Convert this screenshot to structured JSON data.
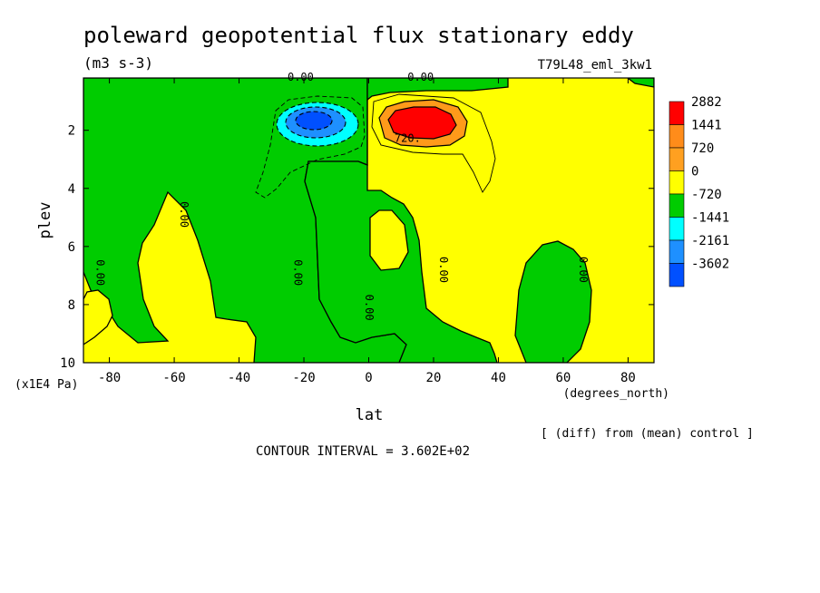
{
  "chart_data": {
    "type": "heatmap",
    "title": "poleward geopotential flux stationary eddy",
    "units": "(m3 s-3)",
    "run_label": "T79L48_eml_3kw1",
    "xlabel": "lat",
    "x_units": "(degrees_north)",
    "ylabel": "plev",
    "y_units": "(x1E4 Pa)",
    "xlim": [
      -88,
      88
    ],
    "ylim": [
      0.2,
      10
    ],
    "y_reversed": true,
    "x_ticks": [
      "-80",
      "-60",
      "-40",
      "-20",
      "0",
      "20",
      "40",
      "60",
      "80"
    ],
    "y_ticks": [
      "2",
      "4",
      "6",
      "8",
      "10"
    ],
    "x_tick_values": [
      -80,
      -60,
      -40,
      -20,
      0,
      20,
      40,
      60,
      80
    ],
    "y_tick_values": [
      2,
      4,
      6,
      8,
      10
    ],
    "contour_interval_text": "CONTOUR INTERVAL = 3.602E+02",
    "footnote": "[ (diff) from (mean) control ]",
    "contour_labels": [
      {
        "text": "0.00",
        "lat": -21,
        "plev": 0.3
      },
      {
        "text": "0.00",
        "lat": 16,
        "plev": 0.3
      },
      {
        "text": "720.",
        "lat": 12,
        "plev": 2.4
      },
      {
        "text": "0.00",
        "lat": -58,
        "plev": 4.9
      },
      {
        "text": "0.00",
        "lat": -84,
        "plev": 6.9
      },
      {
        "text": "0.00",
        "lat": -23,
        "plev": 6.9
      },
      {
        "text": "0.00",
        "lat": -1,
        "plev": 8.1
      },
      {
        "text": "0.00",
        "lat": 22,
        "plev": 6.8
      },
      {
        "text": "0.00",
        "lat": 65,
        "plev": 6.8
      }
    ],
    "legend": {
      "labels": [
        "2882",
        "1441",
        "720",
        "0",
        "-720",
        "-1441",
        "-2161",
        "-3602"
      ],
      "colors": [
        "#ff0000",
        "#ff8c1a",
        "#ffa020",
        "#ffff00",
        "#00cc00",
        "#00ffff",
        "#1e90ff",
        "#0050ff"
      ]
    },
    "colors": {
      "very_high": "#ff0000",
      "high": "#ff9a1a",
      "positive": "#ffff00",
      "negative": "#00cc00",
      "very_negative": "#00ffff",
      "strong_negative": "#1e90ff",
      "extreme_negative": "#0050ff"
    },
    "features": {
      "positive_max": {
        "lat": 15,
        "plev": 1.7,
        "value": 2882
      },
      "negative_min": {
        "lat": -16,
        "plev": 1.6,
        "value": -3602
      }
    }
  }
}
